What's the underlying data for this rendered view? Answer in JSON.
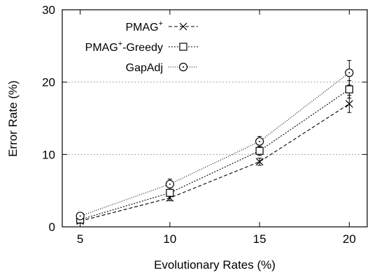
{
  "chart_data": {
    "type": "line",
    "title": "",
    "xlabel": "Evolutionary Rates (%)",
    "ylabel": "Error Rate (%)",
    "x": [
      5,
      10,
      15,
      20
    ],
    "x_ticks": [
      "5",
      "10",
      "15",
      "20"
    ],
    "y_ticks": [
      "0",
      "10",
      "20",
      "30"
    ],
    "xlim": [
      4,
      21
    ],
    "ylim": [
      0,
      30
    ],
    "grid": "horizontal dotted at y ticks",
    "legend_position": "top-left",
    "series": [
      {
        "name_base": "PMAG",
        "name_sup": "+",
        "name_suffix": "",
        "marker": "x-cross",
        "dash": "dashed",
        "values": [
          0.8,
          4.0,
          9.0,
          17.0
        ],
        "err": [
          0.3,
          0.4,
          0.5,
          1.2
        ]
      },
      {
        "name_base": "PMAG",
        "name_sup": "+",
        "name_suffix": "-Greedy",
        "marker": "square",
        "dash": "dotted",
        "values": [
          1.0,
          4.7,
          10.5,
          19.0
        ],
        "err": [
          0.3,
          0.5,
          0.6,
          1.2
        ]
      },
      {
        "name_base": "GapAdj",
        "name_sup": "",
        "name_suffix": "",
        "marker": "circle",
        "dash": "fine-dotted",
        "values": [
          1.5,
          5.9,
          11.8,
          21.3
        ],
        "err": [
          0.3,
          0.7,
          0.7,
          1.7
        ]
      }
    ]
  }
}
